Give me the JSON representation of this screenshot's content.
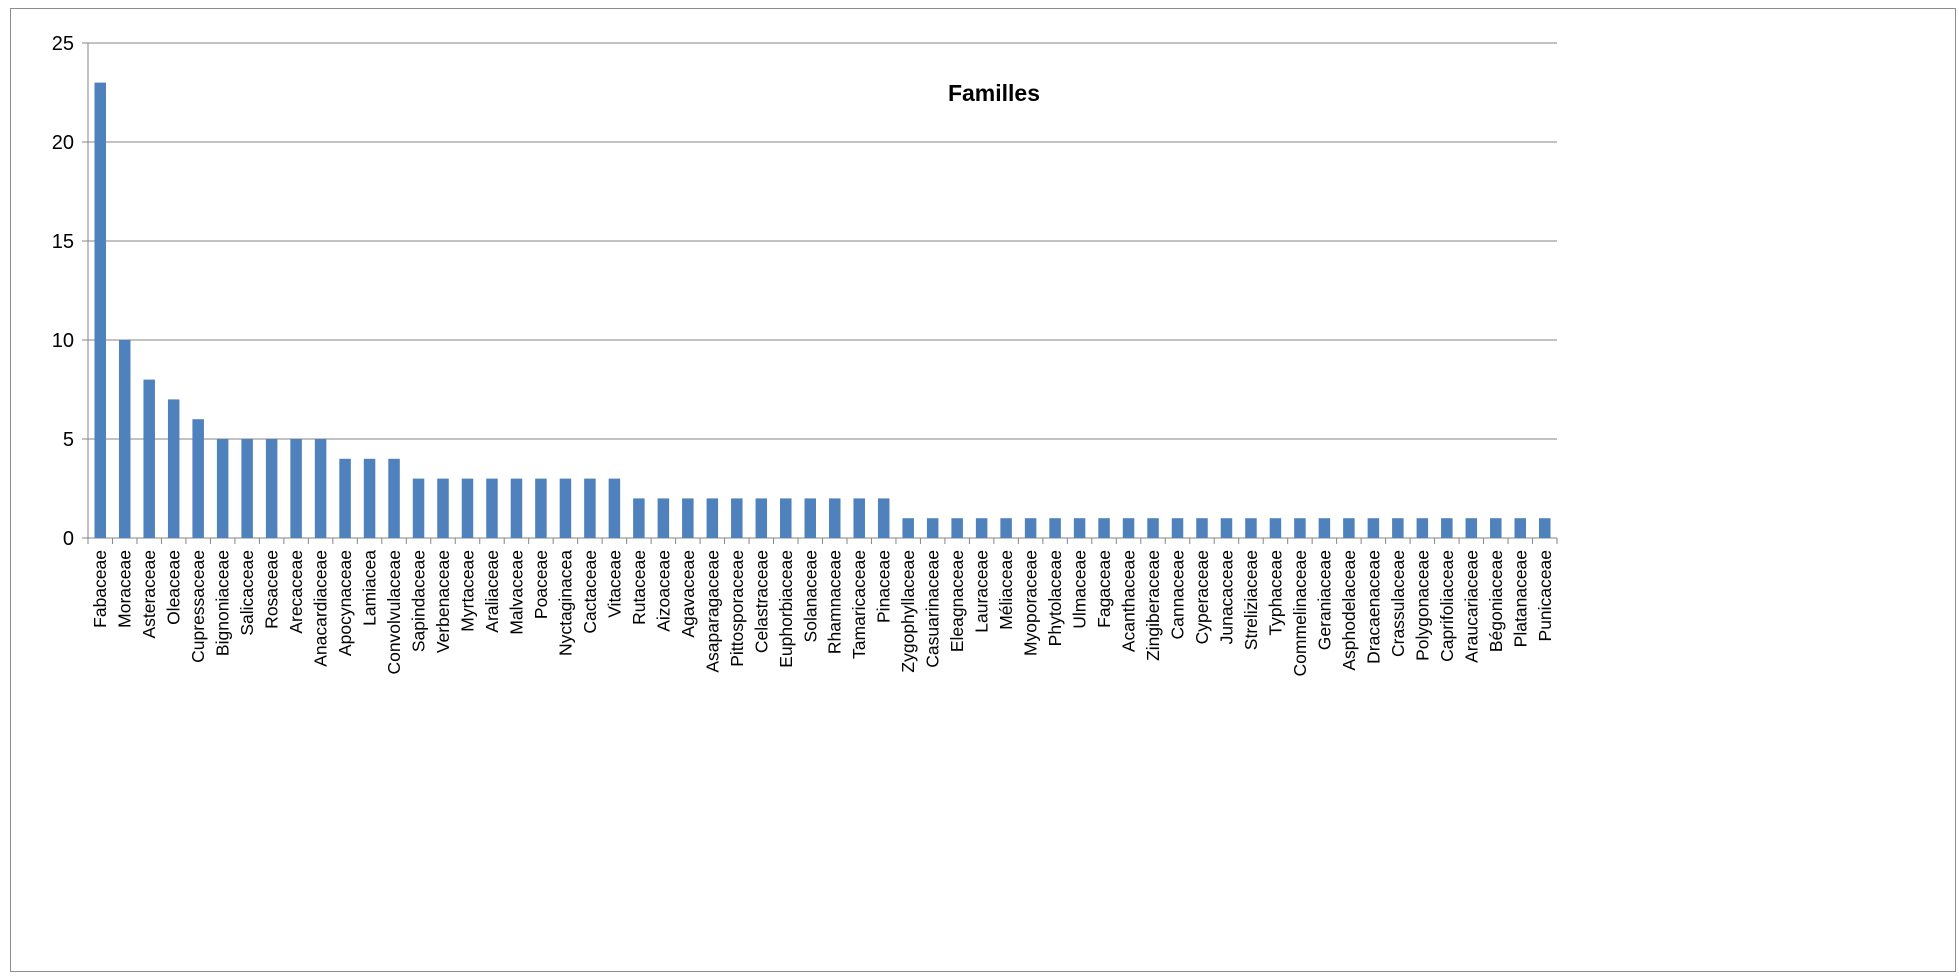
{
  "chart_data": {
    "type": "bar",
    "title": "Familles",
    "xlabel": "",
    "ylabel": "",
    "ylim": [
      0,
      25
    ],
    "yticks": [
      "0",
      "5",
      "10",
      "15",
      "20",
      "25"
    ],
    "grid": true,
    "legend": "none",
    "bar_color": "#4f81bd",
    "categories": [
      "Fabaceae",
      "Moraceae",
      "Asteraceae",
      "Oleaceae",
      "Cupressaceae",
      "Bignoniaceae",
      "Salicaceae",
      "Rosaceae",
      "Arecaceae",
      "Anacardiaceae",
      "Apocynaceae",
      "Lamiacea",
      "Convolvulaceae",
      "Sapindaceae",
      "Verbenaceae",
      "Myrtaceae",
      "Araliaceae",
      "Malvaceae",
      "Poaceae",
      "Nyctaginacea",
      "Cactaceae",
      "Vitaceae",
      "Rutaceae",
      "Aizoaceae",
      "Agavaceae",
      "Asaparagaceae",
      "Pittosporaceae",
      "Celastraceae",
      "Euphorbiaceae",
      "Solanaceae",
      "Rhamnaceae",
      "Tamaricaceae",
      "Pinaceae",
      "Zygophyllaceae",
      "Casuarinaceae",
      "Eleagnaceae",
      "Lauraceae",
      "Méliaceae",
      "Myoporaceae",
      "Phytolaceae",
      "Ulmaceae",
      "Fagaceae",
      "Acanthaceae",
      "Zingiberaceae",
      "Cannaceae",
      "Cyperaceae",
      "Junacaceae",
      "Streliziaceae",
      "Typhaceae",
      "Commelinaceae",
      "Geraniaceae",
      "Asphodelaceae",
      "Dracaenaceae",
      "Crassulaceae",
      "Polygonaceae",
      "Caprifoliaceae",
      "Araucariaceae",
      "Bégoniaceae",
      "Platanaceae",
      "Punicaceae"
    ],
    "values": [
      23,
      10,
      8,
      7,
      6,
      5,
      5,
      5,
      5,
      5,
      4,
      4,
      4,
      3,
      3,
      3,
      3,
      3,
      3,
      3,
      3,
      3,
      2,
      2,
      2,
      2,
      2,
      2,
      2,
      2,
      2,
      2,
      2,
      1,
      1,
      1,
      1,
      1,
      1,
      1,
      1,
      1,
      1,
      1,
      1,
      1,
      1,
      1,
      1,
      1,
      1,
      1,
      1,
      1,
      1,
      1,
      1,
      1,
      1,
      1
    ]
  }
}
